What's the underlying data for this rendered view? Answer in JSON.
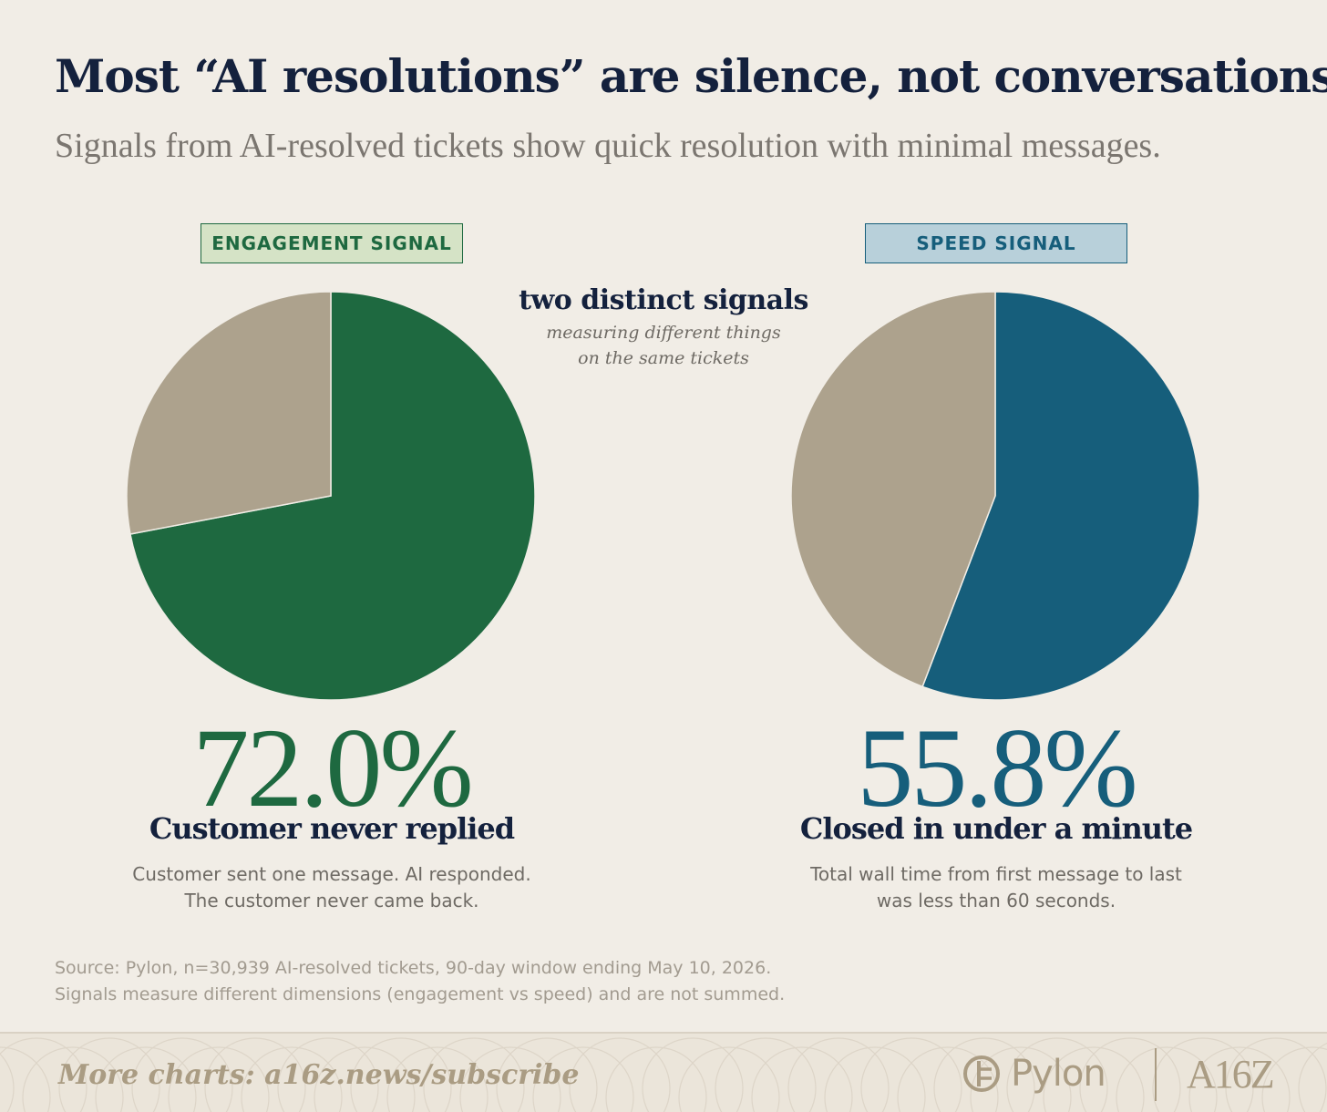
{
  "header": {
    "title": "Most “AI resolutions” are silence, not conversations.",
    "subtitle": "Signals from AI-resolved tickets show quick resolution with minimal messages."
  },
  "center_note": {
    "title": "two distinct signals",
    "line1": "measuring different things",
    "line2": "on the same tickets"
  },
  "chart_data": [
    {
      "type": "pie",
      "title": "ENGAGEMENT SIGNAL",
      "slices": [
        {
          "label": "Customer never replied",
          "value": 72.0,
          "color": "#1e6940"
        },
        {
          "label": "",
          "value": 28.0,
          "color": "#ada28d"
        }
      ],
      "headline_value": "72.0%",
      "headline_label": "Customer never replied",
      "description_line1": "Customer sent one message. AI responded.",
      "description_line2": "The customer never came back."
    },
    {
      "type": "pie",
      "title": "SPEED SIGNAL",
      "slices": [
        {
          "label": "Closed in under a minute",
          "value": 55.8,
          "color": "#165e7b"
        },
        {
          "label": "",
          "value": 44.2,
          "color": "#ada28d"
        }
      ],
      "headline_value": "55.8%",
      "headline_label": "Closed in under a minute",
      "description_line1": "Total wall time from first message to last",
      "description_line2": "was less than 60 seconds."
    }
  ],
  "source": {
    "line1": "Source: Pylon, n=30,939 AI-resolved tickets, 90-day window ending May 10, 2026.",
    "line2": "Signals measure different dimensions (engagement vs speed) and are not summed."
  },
  "footer": {
    "more_charts": "More charts: a16z.news/subscribe",
    "pylon_logo_text": "Pylon",
    "a16z_logo_text": "A16Z",
    "brand_color": "#aa9c83"
  }
}
